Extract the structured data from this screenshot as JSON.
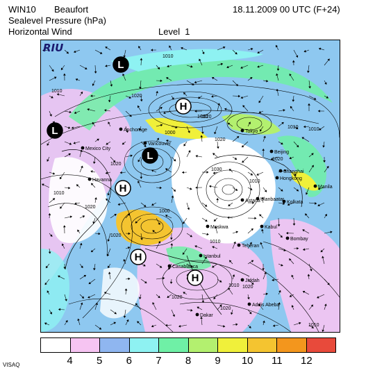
{
  "header": {
    "model": "WIN10",
    "scale": "Beaufort",
    "field1": "Sealevel Pressure (hPa)",
    "field2": "Horizontal Wind",
    "level": "Level  1",
    "datetime": "18.11.2009 00 UTC (F+24)"
  },
  "logo_text": "RIU",
  "footer_text": "VISAQ",
  "legend": {
    "colors": [
      "#ffffff",
      "#f6c4f2",
      "#8fb6f0",
      "#8ef2f2",
      "#6ff0a6",
      "#b3f06f",
      "#f0f03a",
      "#f4c430",
      "#f3961d",
      "#e84a3b"
    ],
    "labels": [
      "4",
      "5",
      "6",
      "7",
      "8",
      "9",
      "10",
      "11",
      "12"
    ]
  },
  "cities": [
    "Mexico City",
    "Havanna",
    "Anchorage",
    "Vancouver",
    "Tokyo",
    "Beijing",
    "Shanghai",
    "Hongkong",
    "Manila",
    "Kolkata",
    "Astana",
    "Moskwa",
    "Kabul",
    "Bombay",
    "Teheran",
    "Istanbul",
    "Casablanca",
    "Dakar",
    "Jiddah",
    "Addis Abeba",
    "Ulanbaatar"
  ],
  "symbols": [
    {
      "type": "L",
      "note": "north pacific"
    },
    {
      "type": "L",
      "note": "north atlantic"
    },
    {
      "type": "L",
      "note": "japan"
    },
    {
      "type": "H",
      "note": "siberia"
    },
    {
      "type": "H",
      "note": "north america"
    },
    {
      "type": "H",
      "note": "azores"
    },
    {
      "type": "H",
      "note": "sahara"
    }
  ],
  "isobar_labels": [
    "1010",
    "1010",
    "1020",
    "1020",
    "1010",
    "1030",
    "1000",
    "1020",
    "1020",
    "1010",
    "1020",
    "1020",
    "1010",
    "1020",
    "1020",
    "1010",
    "1010",
    "1020",
    "1010",
    "1000",
    "1030",
    "1010",
    "1020"
  ]
}
